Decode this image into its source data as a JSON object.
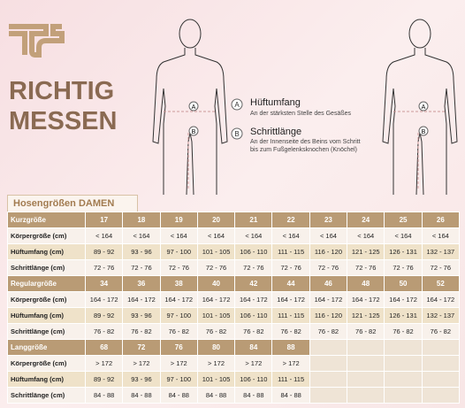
{
  "header": {
    "title_lines": [
      "RICHTIG",
      "MESSEN"
    ]
  },
  "legend": [
    {
      "letter": "A",
      "title": "Hüftumfang",
      "text_lines": [
        "An der stärksten Stelle des Gesäßes"
      ]
    },
    {
      "letter": "B",
      "title": "Schrittlänge",
      "text_lines": [
        "An der Innenseite des Beins vom Schritt",
        "bis zum Fußgelenksknochen (Knöchel)"
      ]
    }
  ],
  "table": {
    "title": "Hosengrößen DAMEN",
    "sections": [
      {
        "name": "Kurzgröße",
        "sizes": [
          17,
          18,
          19,
          20,
          21,
          22,
          23,
          24,
          25,
          26
        ],
        "rows": [
          {
            "label": "Körpergröße (cm)",
            "cells": [
              "< 164",
              "< 164",
              "< 164",
              "< 164",
              "< 164",
              "< 164",
              "< 164",
              "< 164",
              "< 164",
              "< 164"
            ]
          },
          {
            "label": "Hüftumfang (cm)",
            "cells": [
              "89 - 92",
              "93 - 96",
              "97 - 100",
              "101 - 105",
              "106 - 110",
              "111 - 115",
              "116 - 120",
              "121 - 125",
              "126 - 131",
              "132 - 137"
            ]
          },
          {
            "label": "Schrittlänge (cm)",
            "cells": [
              "72 - 76",
              "72 - 76",
              "72 - 76",
              "72 - 76",
              "72 - 76",
              "72 - 76",
              "72 - 76",
              "72 - 76",
              "72 - 76",
              "72 - 76"
            ]
          }
        ]
      },
      {
        "name": "Regulargröße",
        "sizes": [
          34,
          36,
          38,
          40,
          42,
          44,
          46,
          48,
          50,
          52
        ],
        "rows": [
          {
            "label": "Körpergröße (cm)",
            "cells": [
              "164 - 172",
              "164 - 172",
              "164 - 172",
              "164 - 172",
              "164 - 172",
              "164 - 172",
              "164 - 172",
              "164 - 172",
              "164 - 172",
              "164 - 172"
            ]
          },
          {
            "label": "Hüftumfang (cm)",
            "cells": [
              "89 - 92",
              "93 - 96",
              "97 - 100",
              "101 - 105",
              "106 - 110",
              "111 - 115",
              "116 - 120",
              "121 - 125",
              "126 - 131",
              "132 - 137"
            ]
          },
          {
            "label": "Schrittlänge (cm)",
            "cells": [
              "76 - 82",
              "76 - 82",
              "76 - 82",
              "76 - 82",
              "76 - 82",
              "76 - 82",
              "76 - 82",
              "76 - 82",
              "76 - 82",
              "76 - 82"
            ]
          }
        ]
      },
      {
        "name": "Langgröße",
        "sizes": [
          68,
          72,
          76,
          80,
          84,
          88
        ],
        "rows": [
          {
            "label": "Körpergröße (cm)",
            "cells": [
              "> 172",
              "> 172",
              "> 172",
              "> 172",
              "> 172",
              "> 172"
            ]
          },
          {
            "label": "Hüftumfang (cm)",
            "cells": [
              "89 - 92",
              "93 - 96",
              "97 - 100",
              "101 - 105",
              "106 - 110",
              "111 - 115"
            ]
          },
          {
            "label": "Schrittlänge (cm)",
            "cells": [
              "84 - 88",
              "84 - 88",
              "84 - 88",
              "84 - 88",
              "84 - 88",
              "84 - 88"
            ]
          }
        ]
      }
    ]
  }
}
